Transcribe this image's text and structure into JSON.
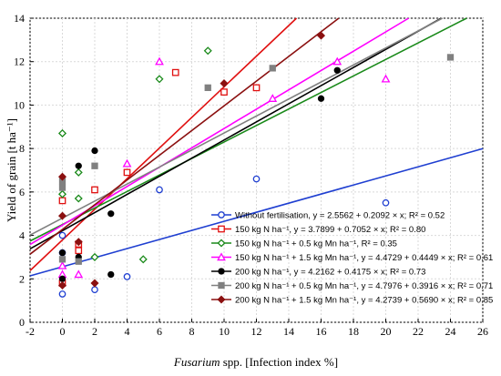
{
  "chart_data": {
    "type": "scatter",
    "title": "",
    "xlabel": "Fusarium spp. [Infection index %]",
    "xlabel_italic_part": "Fusarium",
    "xlabel_rest": " spp. [Infection index %]",
    "ylabel": "Yield of grain [t ha⁻¹]",
    "xlim": [
      -2,
      26
    ],
    "ylim": [
      0,
      14
    ],
    "xticks": [
      "-2",
      "0",
      "2",
      "4",
      "6",
      "8",
      "10",
      "12",
      "14",
      "16",
      "18",
      "20",
      "22",
      "24",
      "26"
    ],
    "yticks": [
      "0",
      "2",
      "4",
      "6",
      "8",
      "10",
      "12",
      "14"
    ],
    "grid": true,
    "legend_position": "bottom-right",
    "series": [
      {
        "name": "Without fertilisation,  y = 2.5562 + 0.2092 × x; R² = 0.52",
        "color": "#1f3fd1",
        "marker": "circle-open",
        "intercept": 2.5562,
        "slope": 0.2092,
        "points": [
          [
            0,
            1.3
          ],
          [
            0,
            3.2
          ],
          [
            0,
            4.0
          ],
          [
            2,
            1.5
          ],
          [
            4,
            2.1
          ],
          [
            6,
            6.1
          ],
          [
            12,
            6.6
          ],
          [
            20,
            5.5
          ]
        ]
      },
      {
        "name": "150 kg N ha⁻¹, y = 3.7899 + 0.7052 × x; R² = 0.80",
        "color": "#e01010",
        "marker": "square-open",
        "intercept": 3.7899,
        "slope": 0.7052,
        "points": [
          [
            0,
            1.8
          ],
          [
            0,
            5.6
          ],
          [
            1,
            3.3
          ],
          [
            1,
            3.6
          ],
          [
            2,
            6.1
          ],
          [
            4,
            6.9
          ],
          [
            7,
            11.5
          ],
          [
            10,
            10.6
          ],
          [
            12,
            10.8
          ]
        ]
      },
      {
        "name": "150 kg N ha⁻¹ + 0.5 kg Mn ha⁻¹, R² = 0.35",
        "color": "#1a8a1a",
        "marker": "diamond-open",
        "intercept": 4.5,
        "slope": 0.38,
        "points": [
          [
            0,
            8.7
          ],
          [
            0,
            5.9
          ],
          [
            1,
            5.7
          ],
          [
            1,
            6.9
          ],
          [
            2,
            3.0
          ],
          [
            5,
            2.9
          ],
          [
            6,
            11.2
          ],
          [
            9,
            12.5
          ]
        ]
      },
      {
        "name": "150 kg N ha⁻¹ + 1.5 kg Mn ha⁻¹, y = 4.4729 + 0.4449 × x; R² = 0.61",
        "color": "#ff00ff",
        "marker": "triangle-open",
        "intercept": 4.4729,
        "slope": 0.4449,
        "points": [
          [
            0,
            2.2
          ],
          [
            0,
            2.6
          ],
          [
            1,
            2.2
          ],
          [
            4,
            7.3
          ],
          [
            6,
            12.0
          ],
          [
            13,
            10.3
          ],
          [
            17,
            12.0
          ],
          [
            20,
            11.2
          ]
        ]
      },
      {
        "name": "200 kg N ha⁻¹, y = 4.2162 + 0.4175 × x; R² = 0.73",
        "color": "#000000",
        "marker": "circle-filled",
        "intercept": 4.2162,
        "slope": 0.4175,
        "points": [
          [
            0,
            2.0
          ],
          [
            0,
            3.2
          ],
          [
            1,
            7.2
          ],
          [
            1,
            3.0
          ],
          [
            2,
            7.9
          ],
          [
            3,
            2.2
          ],
          [
            3,
            5.0
          ],
          [
            16,
            10.3
          ],
          [
            17,
            11.6
          ]
        ]
      },
      {
        "name": "200 kg N ha⁻¹ + 0.5 kg Mn ha⁻¹, y = 4.7976 + 0.3916 × x; R² = 0.71",
        "color": "#808080",
        "marker": "square-filled",
        "intercept": 4.7976,
        "slope": 0.3916,
        "points": [
          [
            0,
            2.9
          ],
          [
            0,
            6.2
          ],
          [
            0,
            6.5
          ],
          [
            1,
            2.8
          ],
          [
            2,
            7.2
          ],
          [
            9,
            10.8
          ],
          [
            13,
            11.7
          ],
          [
            24,
            12.2
          ]
        ]
      },
      {
        "name": "200 kg N ha⁻¹ + 1.5 kg Mn ha⁻¹, y = 4.2739 + 0.5690 × x; R² = 0.85",
        "color": "#8b1010",
        "marker": "diamond-filled",
        "intercept": 4.2739,
        "slope": 0.569,
        "points": [
          [
            0,
            1.7
          ],
          [
            0,
            4.9
          ],
          [
            0,
            6.7
          ],
          [
            1,
            3.7
          ],
          [
            2,
            1.8
          ],
          [
            10,
            11.0
          ],
          [
            16,
            13.2
          ]
        ]
      }
    ]
  }
}
